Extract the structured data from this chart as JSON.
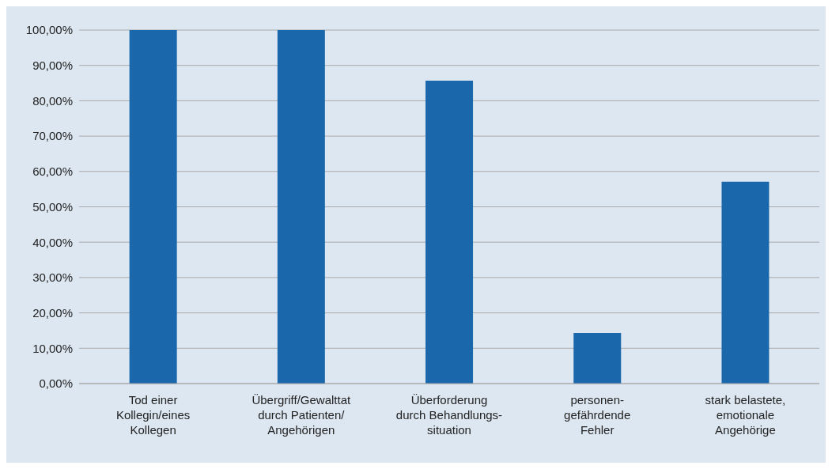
{
  "chart_data": {
    "type": "bar",
    "categories": [
      "Tod einer\nKollegin/eines\nKollegen",
      "Übergriff/Gewalttat\ndurch Patienten/\nAngehörigen",
      "Überforderung\ndurch Behandlungs-\nsituation",
      "personen-\ngefährdende\nFehler",
      "stark belastete,\nemotionale\nAngehörige"
    ],
    "values": [
      100,
      100,
      85.7,
      14.3,
      57.1
    ],
    "color": "#1a67ab",
    "ylim": [
      0,
      100
    ],
    "yticks": [
      {
        "value": 0,
        "label": "0,00%"
      },
      {
        "value": 10,
        "label": "10,00%"
      },
      {
        "value": 20,
        "label": "20,00%"
      },
      {
        "value": 30,
        "label": "30,00%"
      },
      {
        "value": 40,
        "label": "40,00%"
      },
      {
        "value": 50,
        "label": "50,00%"
      },
      {
        "value": 60,
        "label": "60,00%"
      },
      {
        "value": 70,
        "label": "70,00%"
      },
      {
        "value": 80,
        "label": "80,00%"
      },
      {
        "value": 90,
        "label": "90,00%"
      },
      {
        "value": 100,
        "label": "100,00%"
      }
    ],
    "grid": "y",
    "legend": false
  }
}
